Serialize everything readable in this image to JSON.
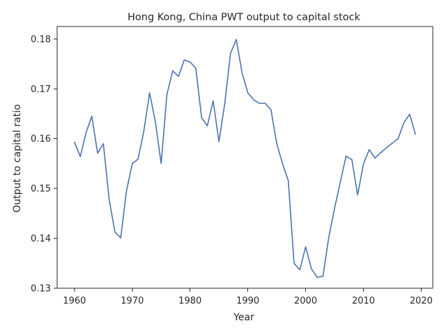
{
  "chart_data": {
    "type": "line",
    "title": "Hong Kong, China PWT output to capital stock",
    "xlabel": "Year",
    "ylabel": "Output to capital ratio",
    "xlim": [
      1957,
      2022
    ],
    "ylim": [
      0.13,
      0.1825
    ],
    "xticks": [
      1960,
      1970,
      1980,
      1990,
      2000,
      2010,
      2020
    ],
    "yticks": [
      0.13,
      0.14,
      0.15,
      0.16,
      0.17,
      0.18
    ],
    "ytick_labels": [
      "0.13",
      "0.14",
      "0.15",
      "0.16",
      "0.17",
      "0.18"
    ],
    "grid": false,
    "line_color": "#4c72b0",
    "x": [
      1960,
      1961,
      1962,
      1963,
      1964,
      1965,
      1966,
      1967,
      1968,
      1969,
      1970,
      1971,
      1972,
      1973,
      1974,
      1975,
      1976,
      1977,
      1978,
      1979,
      1980,
      1981,
      1982,
      1983,
      1984,
      1985,
      1986,
      1987,
      1988,
      1989,
      1990,
      1991,
      1992,
      1993,
      1994,
      1995,
      1996,
      1997,
      1998,
      1999,
      2000,
      2001,
      2002,
      2003,
      2004,
      2005,
      2006,
      2007,
      2008,
      2009,
      2010,
      2011,
      2012,
      2013,
      2014,
      2015,
      2016,
      2017,
      2018,
      2019
    ],
    "series": [
      {
        "values": [
          0.1593,
          0.1564,
          0.1612,
          0.1645,
          0.1571,
          0.159,
          0.1478,
          0.1413,
          0.1401,
          0.1495,
          0.155,
          0.1559,
          0.1615,
          0.1692,
          0.1634,
          0.155,
          0.1689,
          0.1736,
          0.1725,
          0.1758,
          0.1754,
          0.1741,
          0.1642,
          0.1626,
          0.1676,
          0.1594,
          0.167,
          0.1771,
          0.1799,
          0.1732,
          0.1692,
          0.1678,
          0.1671,
          0.1671,
          0.1658,
          0.159,
          0.155,
          0.1516,
          0.135,
          0.1337,
          0.1383,
          0.1339,
          0.1322,
          0.1324,
          0.1402,
          0.146,
          0.1513,
          0.1565,
          0.1558,
          0.1487,
          0.1549,
          0.1578,
          0.1561,
          0.1572,
          0.1582,
          0.1591,
          0.16,
          0.1632,
          0.1649,
          0.1609
        ]
      }
    ]
  }
}
